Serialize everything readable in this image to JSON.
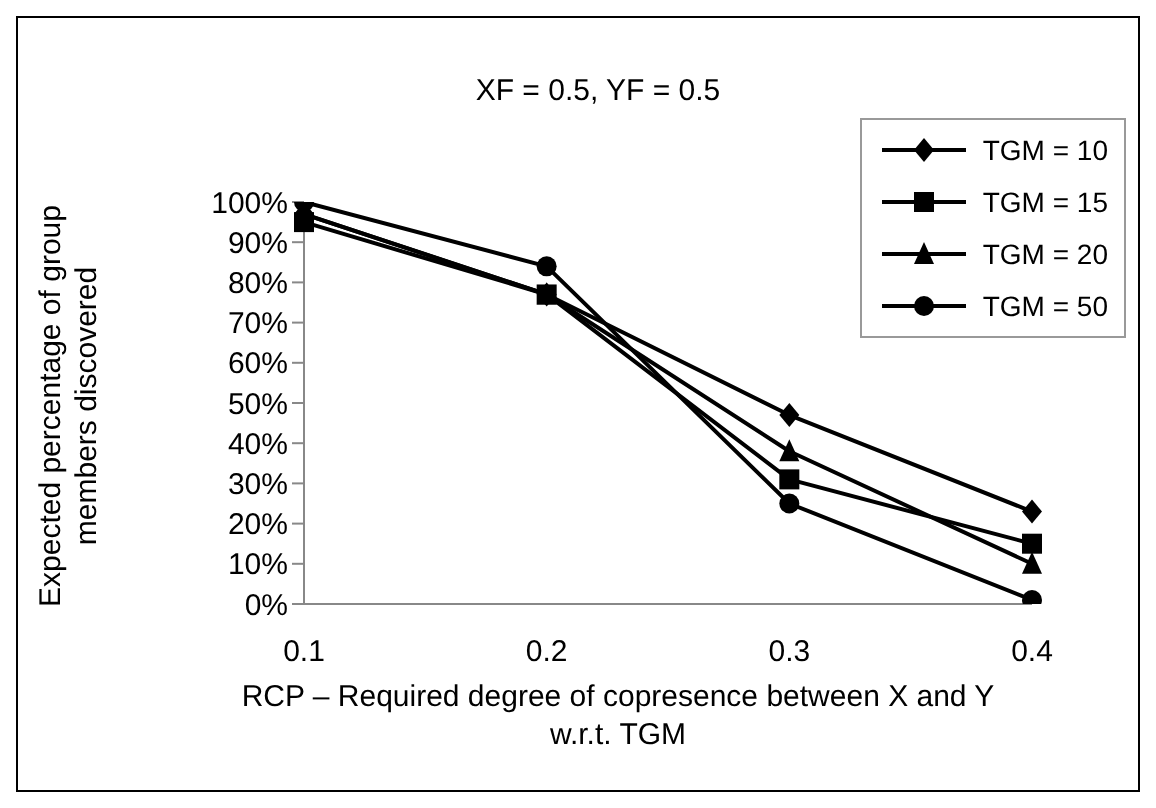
{
  "chart_data": {
    "type": "line",
    "title": "XF = 0.5, YF = 0.5",
    "xlabel": "RCP – Required degree of copresence between X and Y w.r.t. TGM",
    "ylabel": "Expected percentage of group members discovered",
    "categories": [
      "0.1",
      "0.2",
      "0.3",
      "0.4"
    ],
    "series": [
      {
        "name": "TGM = 10",
        "color": "#000000",
        "marker": "diamond",
        "values": [
          97,
          77,
          47,
          23
        ]
      },
      {
        "name": "TGM = 15",
        "color": "#000000",
        "marker": "square",
        "values": [
          95,
          77,
          31,
          15
        ]
      },
      {
        "name": "TGM = 20",
        "color": "#000000",
        "marker": "triangle",
        "values": [
          97,
          77,
          38,
          10
        ]
      },
      {
        "name": "TGM = 50",
        "color": "#000000",
        "marker": "circle",
        "values": [
          100,
          84,
          25,
          1
        ]
      }
    ],
    "ylim": [
      0,
      100
    ],
    "yticks": [
      {
        "value": 0,
        "label": "0%"
      },
      {
        "value": 10,
        "label": "10%"
      },
      {
        "value": 20,
        "label": "20%"
      },
      {
        "value": 30,
        "label": "30%"
      },
      {
        "value": 40,
        "label": "40%"
      },
      {
        "value": 50,
        "label": "50%"
      },
      {
        "value": 60,
        "label": "60%"
      },
      {
        "value": 70,
        "label": "70%"
      },
      {
        "value": 80,
        "label": "80%"
      },
      {
        "value": 90,
        "label": "90%"
      },
      {
        "value": 100,
        "label": "100%"
      }
    ],
    "grid": false,
    "legend": "top right",
    "line_style": "solid"
  }
}
